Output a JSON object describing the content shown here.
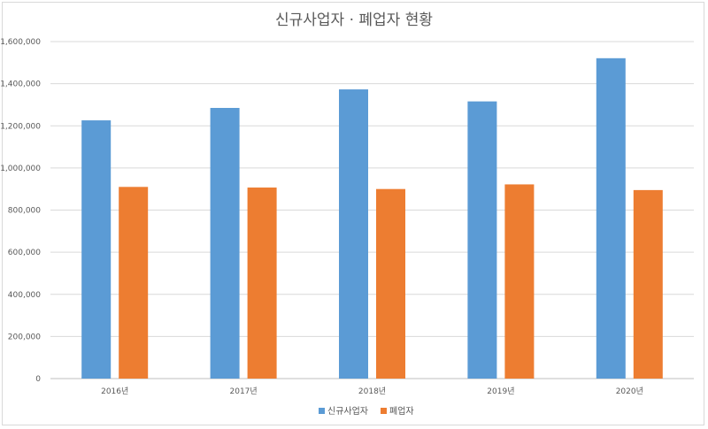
{
  "chart_data": {
    "type": "bar",
    "title": "신규사업자 · 폐업자 현황",
    "categories": [
      "2016년",
      "2017년",
      "2018년",
      "2019년",
      "2020년"
    ],
    "series": [
      {
        "name": "신규사업자",
        "color": "#5b9bd5",
        "values": [
          1226000,
          1285000,
          1373000,
          1316000,
          1521000
        ]
      },
      {
        "name": "폐업자",
        "color": "#ed7d31",
        "values": [
          910000,
          907000,
          900000,
          922000,
          895000
        ]
      }
    ],
    "ylim": [
      0,
      1600000
    ],
    "yticks": [
      0,
      200000,
      400000,
      600000,
      800000,
      1000000,
      1200000,
      1400000,
      1600000
    ],
    "ytick_labels": [
      "0",
      "200,000",
      "400,000",
      "600,000",
      "800,000",
      "1,000,000",
      "1,200,000",
      "1,400,000",
      "1,600,000"
    ],
    "xlabel": "",
    "ylabel": "",
    "grid": true,
    "legend": "bottom-center"
  }
}
